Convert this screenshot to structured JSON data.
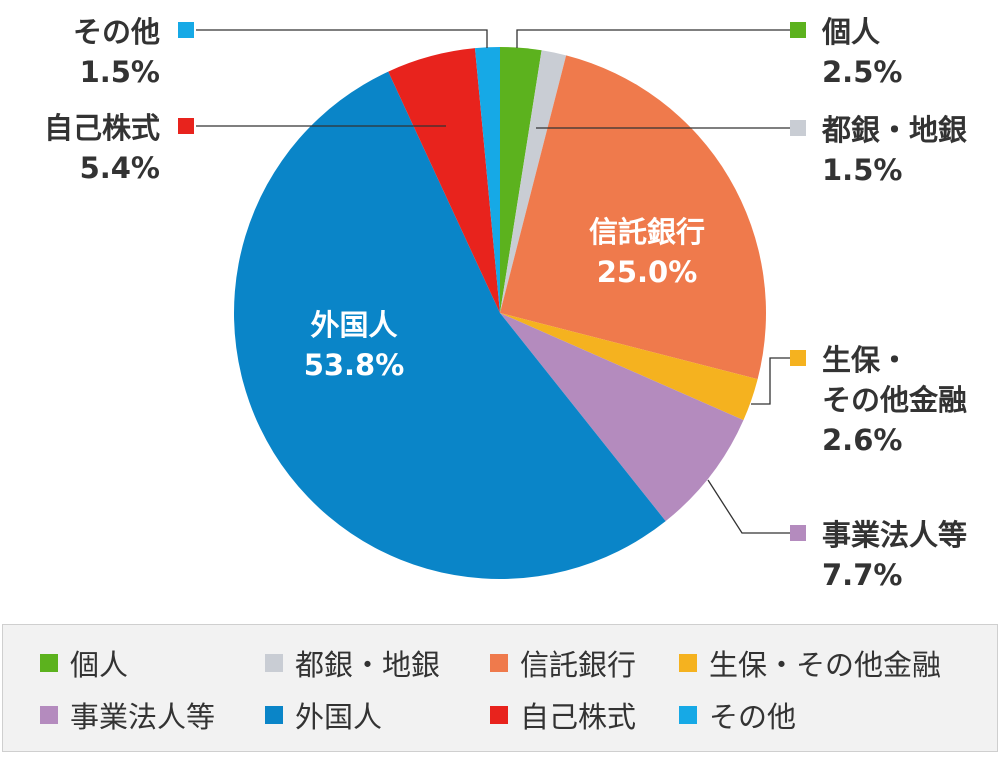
{
  "chart_data": {
    "type": "pie",
    "slices": [
      {
        "label": "個人",
        "value": 2.5,
        "value_label": "2.5%",
        "color": "#5cb21e"
      },
      {
        "label": "都銀・地銀",
        "value": 1.5,
        "value_label": "1.5%",
        "color": "#c9cdd4"
      },
      {
        "label": "信託銀行",
        "value": 25.0,
        "value_label": "25.0%",
        "color": "#ef7a4c"
      },
      {
        "label": "生保・その他金融",
        "value": 2.6,
        "value_label": "2.6%",
        "color": "#f5b21f"
      },
      {
        "label": "事業法人等",
        "value": 7.7,
        "value_label": "7.7%",
        "color": "#b48bbe"
      },
      {
        "label": "外国人",
        "value": 53.8,
        "value_label": "53.8%",
        "color": "#0a85c8"
      },
      {
        "label": "自己株式",
        "value": 5.4,
        "value_label": "5.4%",
        "color": "#e8231d"
      },
      {
        "label": "その他",
        "value": 1.5,
        "value_label": "1.5%",
        "color": "#16a9e6"
      }
    ],
    "legend_position": "bottom"
  },
  "callout_labels": [
    {
      "name": "その他",
      "lines": [
        "その他"
      ],
      "value": "1.5%"
    },
    {
      "name": "自己株式",
      "lines": [
        "自己株式"
      ],
      "value": "5.4%"
    },
    {
      "name": "個人",
      "lines": [
        "個人"
      ],
      "value": "2.5%"
    },
    {
      "name": "都銀・地銀",
      "lines": [
        "都銀・地銀"
      ],
      "value": "1.5%"
    },
    {
      "name": "生保・その他金融",
      "lines": [
        "生保・",
        "その他金融"
      ],
      "value": "2.6%"
    },
    {
      "name": "事業法人等",
      "lines": [
        "事業法人等"
      ],
      "value": "7.7%"
    }
  ],
  "legend": {
    "items": [
      "個人",
      "都銀・地銀",
      "信託銀行",
      "生保・その他金融",
      "事業法人等",
      "外国人",
      "自己株式",
      "その他"
    ]
  }
}
